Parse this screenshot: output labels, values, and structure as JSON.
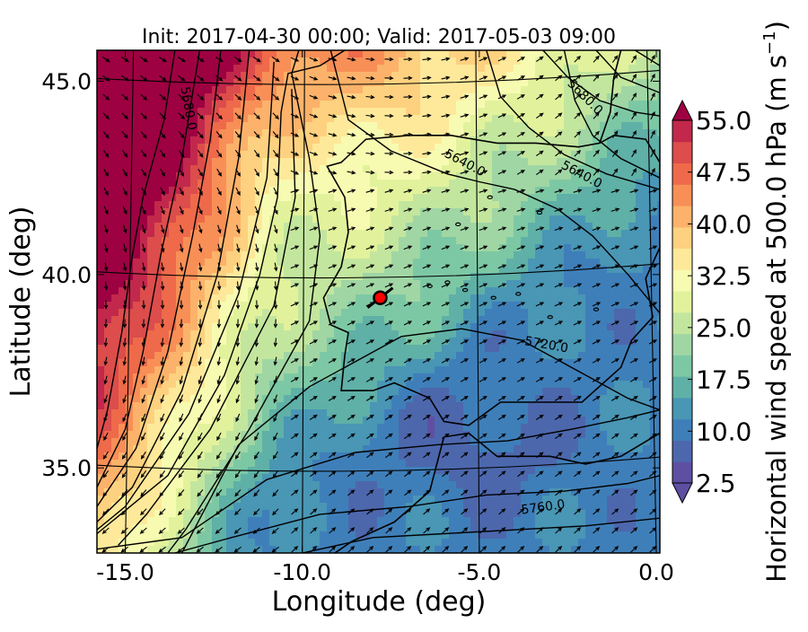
{
  "chart_data": {
    "type": "heatmap",
    "title": "Init: 2017-04-30 00:00; Valid: 2017-05-03 09:00",
    "xlabel": "Longitude (deg)",
    "ylabel": "Latitude (deg)",
    "xlim": [
      -15.8,
      0.1
    ],
    "ylim": [
      32.8,
      45.8
    ],
    "x_ticks": [
      -15.0,
      -10.0,
      -5.0,
      0.0
    ],
    "x_tick_labels": [
      "-15.0",
      "-10.0",
      "-5.0",
      "0.0"
    ],
    "y_ticks": [
      35.0,
      40.0,
      45.0
    ],
    "y_tick_labels": [
      "35.0",
      "40.0",
      "45.0"
    ],
    "colorbar": {
      "label": "Horizontal wind speed at 500.0 hPa (m s$^{-1}$)",
      "label_main": "Horizontal wind speed at 500.0 hPa (m s",
      "label_sup": "−1",
      "label_end": ")",
      "min": 2.5,
      "max": 55.0,
      "step": 2.5,
      "ticks": [
        "2.5",
        "10.0",
        "17.5",
        "25.0",
        "32.5",
        "40.0",
        "47.5",
        "55.0"
      ],
      "extend": "both"
    },
    "contour_labels": [
      "5680.0",
      "5680.0",
      "5640.0",
      "5640.0",
      "5720.0",
      "5760.0"
    ],
    "marker": {
      "lon": -7.8,
      "lat": 39.4,
      "color": "#ff0000"
    },
    "series": [
      {
        "kind": "filled-contour",
        "variable": "wind speed",
        "field_note": "weak core over Iberia/Atlantic, strong jet to NE and NW"
      },
      {
        "kind": "contour",
        "variable": "geopotential height"
      },
      {
        "kind": "quiver",
        "variable": "wind direction"
      }
    ],
    "colors": [
      "#5e4fa2",
      "#4d67ad",
      "#3f7fb9",
      "#4996b5",
      "#5fb0a7",
      "#7dc8a4",
      "#a0d6a4",
      "#c3e69e",
      "#e2f29c",
      "#f7fbb1",
      "#fee99a",
      "#fdd17f",
      "#fcb26a",
      "#f88f57",
      "#ee6a4a",
      "#dc4d4c",
      "#c2284b",
      "#9e0142"
    ]
  }
}
